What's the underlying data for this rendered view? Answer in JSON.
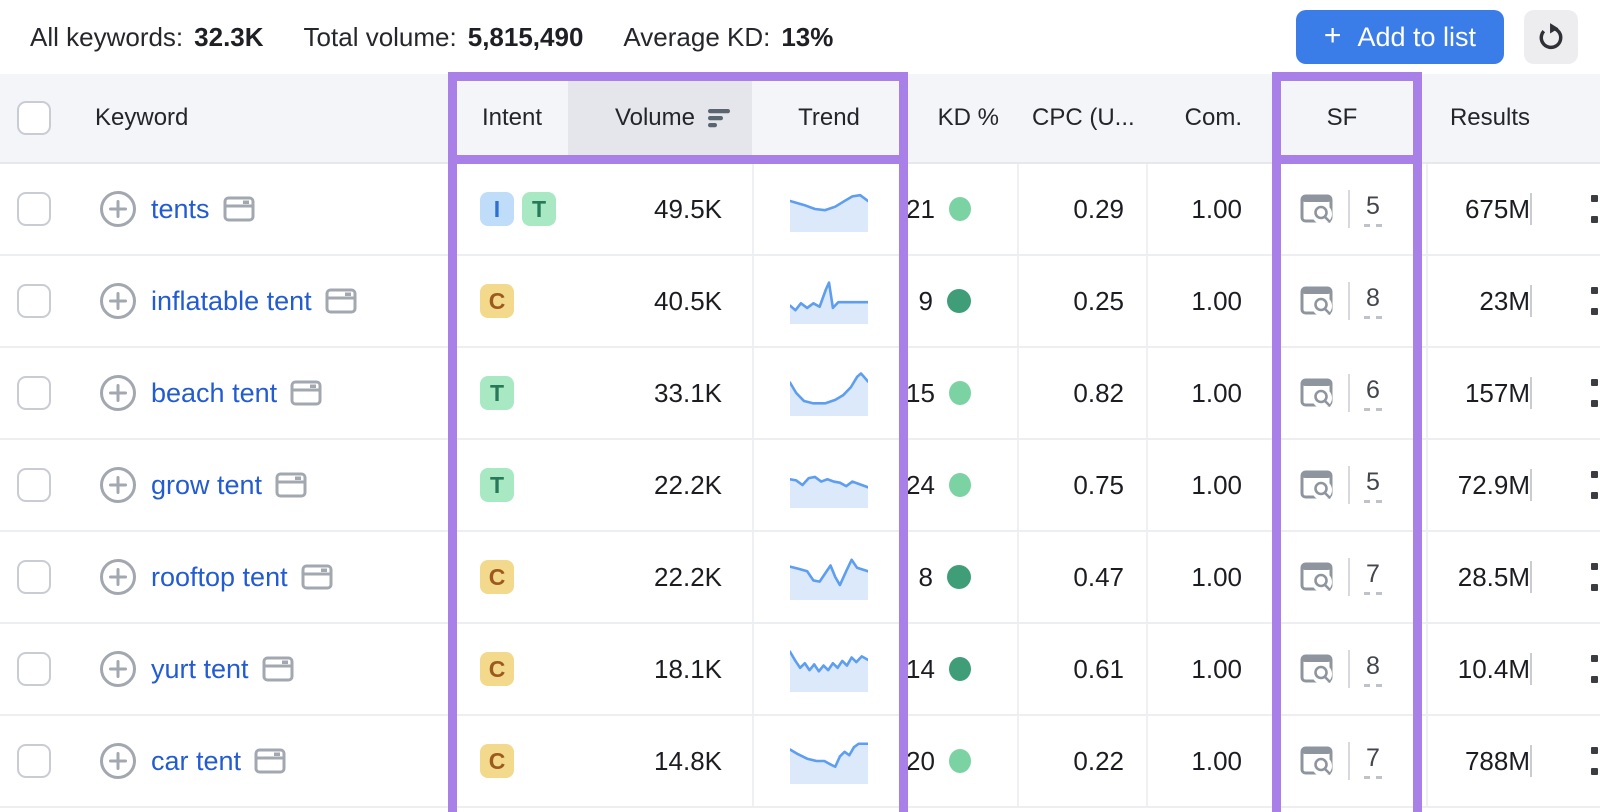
{
  "toolbar": {
    "stats": [
      {
        "label": "All keywords:",
        "value": "32.3K"
      },
      {
        "label": "Total volume:",
        "value": "5,815,490"
      },
      {
        "label": "Average KD:",
        "value": "13%"
      }
    ],
    "add_plus": "+",
    "add_button_label": "Add to list"
  },
  "icons": {
    "toolbar": [
      "plus-icon",
      "refresh-icon"
    ],
    "row": [
      "add-keyword-circle-plus-icon",
      "serp-preview-icon",
      "serp-features-icon"
    ],
    "header": [
      "sort-descending-icon",
      "checkbox"
    ]
  },
  "table": {
    "header": {
      "keyword": "Keyword",
      "intent": "Intent",
      "volume": "Volume",
      "trend": "Trend",
      "kd": "KD %",
      "cpc": "CPC (U...",
      "com": "Com.",
      "sf": "SF",
      "results": "Results"
    },
    "sorted_by": "Volume",
    "rows": [
      {
        "keyword": "tents",
        "intents": [
          "I",
          "T"
        ],
        "volume": "49.5K",
        "kd": "21",
        "kd_level": "easy",
        "cpc": "0.29",
        "com": "1.00",
        "sf": "5",
        "results": "675M",
        "trend": [
          [
            0,
            13
          ],
          [
            10,
            15
          ],
          [
            20,
            17
          ],
          [
            32,
            20
          ],
          [
            45,
            21
          ],
          [
            58,
            18
          ],
          [
            70,
            13
          ],
          [
            80,
            9
          ],
          [
            90,
            8
          ],
          [
            100,
            13
          ]
        ]
      },
      {
        "keyword": "inflatable tent",
        "intents": [
          "C"
        ],
        "volume": "40.5K",
        "kd": "9",
        "kd_level": "very easy",
        "cpc": "0.25",
        "com": "1.00",
        "sf": "8",
        "results": "23M",
        "trend": [
          [
            0,
            24
          ],
          [
            7,
            28
          ],
          [
            14,
            22
          ],
          [
            22,
            26
          ],
          [
            30,
            22
          ],
          [
            38,
            25
          ],
          [
            46,
            10
          ],
          [
            50,
            4
          ],
          [
            55,
            26
          ],
          [
            62,
            21
          ],
          [
            80,
            21
          ],
          [
            100,
            21
          ]
        ]
      },
      {
        "keyword": "beach tent",
        "intents": [
          "T"
        ],
        "volume": "33.1K",
        "kd": "15",
        "kd_level": "easy",
        "cpc": "0.82",
        "com": "1.00",
        "sf": "6",
        "results": "157M",
        "trend": [
          [
            0,
            11
          ],
          [
            8,
            20
          ],
          [
            18,
            27
          ],
          [
            30,
            29
          ],
          [
            45,
            29
          ],
          [
            58,
            26
          ],
          [
            68,
            22
          ],
          [
            78,
            15
          ],
          [
            86,
            6
          ],
          [
            91,
            3
          ],
          [
            100,
            10
          ]
        ]
      },
      {
        "keyword": "grow tent",
        "intents": [
          "T"
        ],
        "volume": "22.2K",
        "kd": "24",
        "kd_level": "easy",
        "cpc": "0.75",
        "com": "1.00",
        "sf": "5",
        "results": "72.9M",
        "trend": [
          [
            0,
            15
          ],
          [
            8,
            16
          ],
          [
            16,
            20
          ],
          [
            24,
            14
          ],
          [
            32,
            13
          ],
          [
            40,
            17
          ],
          [
            48,
            15
          ],
          [
            56,
            17
          ],
          [
            64,
            18
          ],
          [
            72,
            21
          ],
          [
            80,
            17
          ],
          [
            88,
            19
          ],
          [
            100,
            22
          ]
        ]
      },
      {
        "keyword": "rooftop tent",
        "intents": [
          "C"
        ],
        "volume": "22.2K",
        "kd": "8",
        "kd_level": "very easy",
        "cpc": "0.47",
        "com": "1.00",
        "sf": "7",
        "results": "28.5M",
        "trend": [
          [
            0,
            11
          ],
          [
            12,
            13
          ],
          [
            22,
            15
          ],
          [
            30,
            23
          ],
          [
            38,
            24
          ],
          [
            46,
            16
          ],
          [
            52,
            10
          ],
          [
            58,
            20
          ],
          [
            64,
            27
          ],
          [
            72,
            15
          ],
          [
            79,
            5
          ],
          [
            86,
            12
          ],
          [
            100,
            15
          ]
        ]
      },
      {
        "keyword": "yurt tent",
        "intents": [
          "C"
        ],
        "volume": "18.1K",
        "kd": "14",
        "kd_level": "very easy",
        "cpc": "0.61",
        "com": "1.00",
        "sf": "8",
        "results": "10.4M",
        "trend": [
          [
            0,
            5
          ],
          [
            7,
            13
          ],
          [
            13,
            19
          ],
          [
            19,
            15
          ],
          [
            25,
            21
          ],
          [
            31,
            16
          ],
          [
            37,
            22
          ],
          [
            43,
            17
          ],
          [
            49,
            21
          ],
          [
            55,
            15
          ],
          [
            61,
            19
          ],
          [
            67,
            13
          ],
          [
            73,
            17
          ],
          [
            79,
            10
          ],
          [
            85,
            14
          ],
          [
            92,
            9
          ],
          [
            100,
            12
          ]
        ]
      },
      {
        "keyword": "car tent",
        "intents": [
          "C"
        ],
        "volume": "14.8K",
        "kd": "20",
        "kd_level": "easy",
        "cpc": "0.22",
        "com": "1.00",
        "sf": "7",
        "results": "788M",
        "trend": [
          [
            0,
            10
          ],
          [
            10,
            14
          ],
          [
            22,
            18
          ],
          [
            34,
            20
          ],
          [
            44,
            20
          ],
          [
            52,
            23
          ],
          [
            58,
            25
          ],
          [
            64,
            16
          ],
          [
            70,
            12
          ],
          [
            76,
            15
          ],
          [
            82,
            8
          ],
          [
            88,
            5
          ],
          [
            100,
            5
          ]
        ]
      }
    ]
  },
  "intent_types": {
    "I": {
      "name": "informational",
      "bg": "#bfddf8",
      "fg": "#2e6fd0"
    },
    "T": {
      "name": "transactional",
      "bg": "#a8e9c4",
      "fg": "#27795a"
    },
    "C": {
      "name": "commercial",
      "bg": "#f3d98b",
      "fg": "#9c5a1e"
    }
  },
  "colors": {
    "annotation_purple": "#a980e8",
    "button_blue": "#3a7ce8",
    "link_blue": "#235bd2",
    "kd_easy": "#7bd3a3",
    "kd_very_easy": "#3f9d78",
    "trend_line": "#5d9ef0",
    "trend_fill": "#dbe9fb",
    "header_bg": "#f4f5f8",
    "sorted_header_bg": "#e5e5ec"
  }
}
